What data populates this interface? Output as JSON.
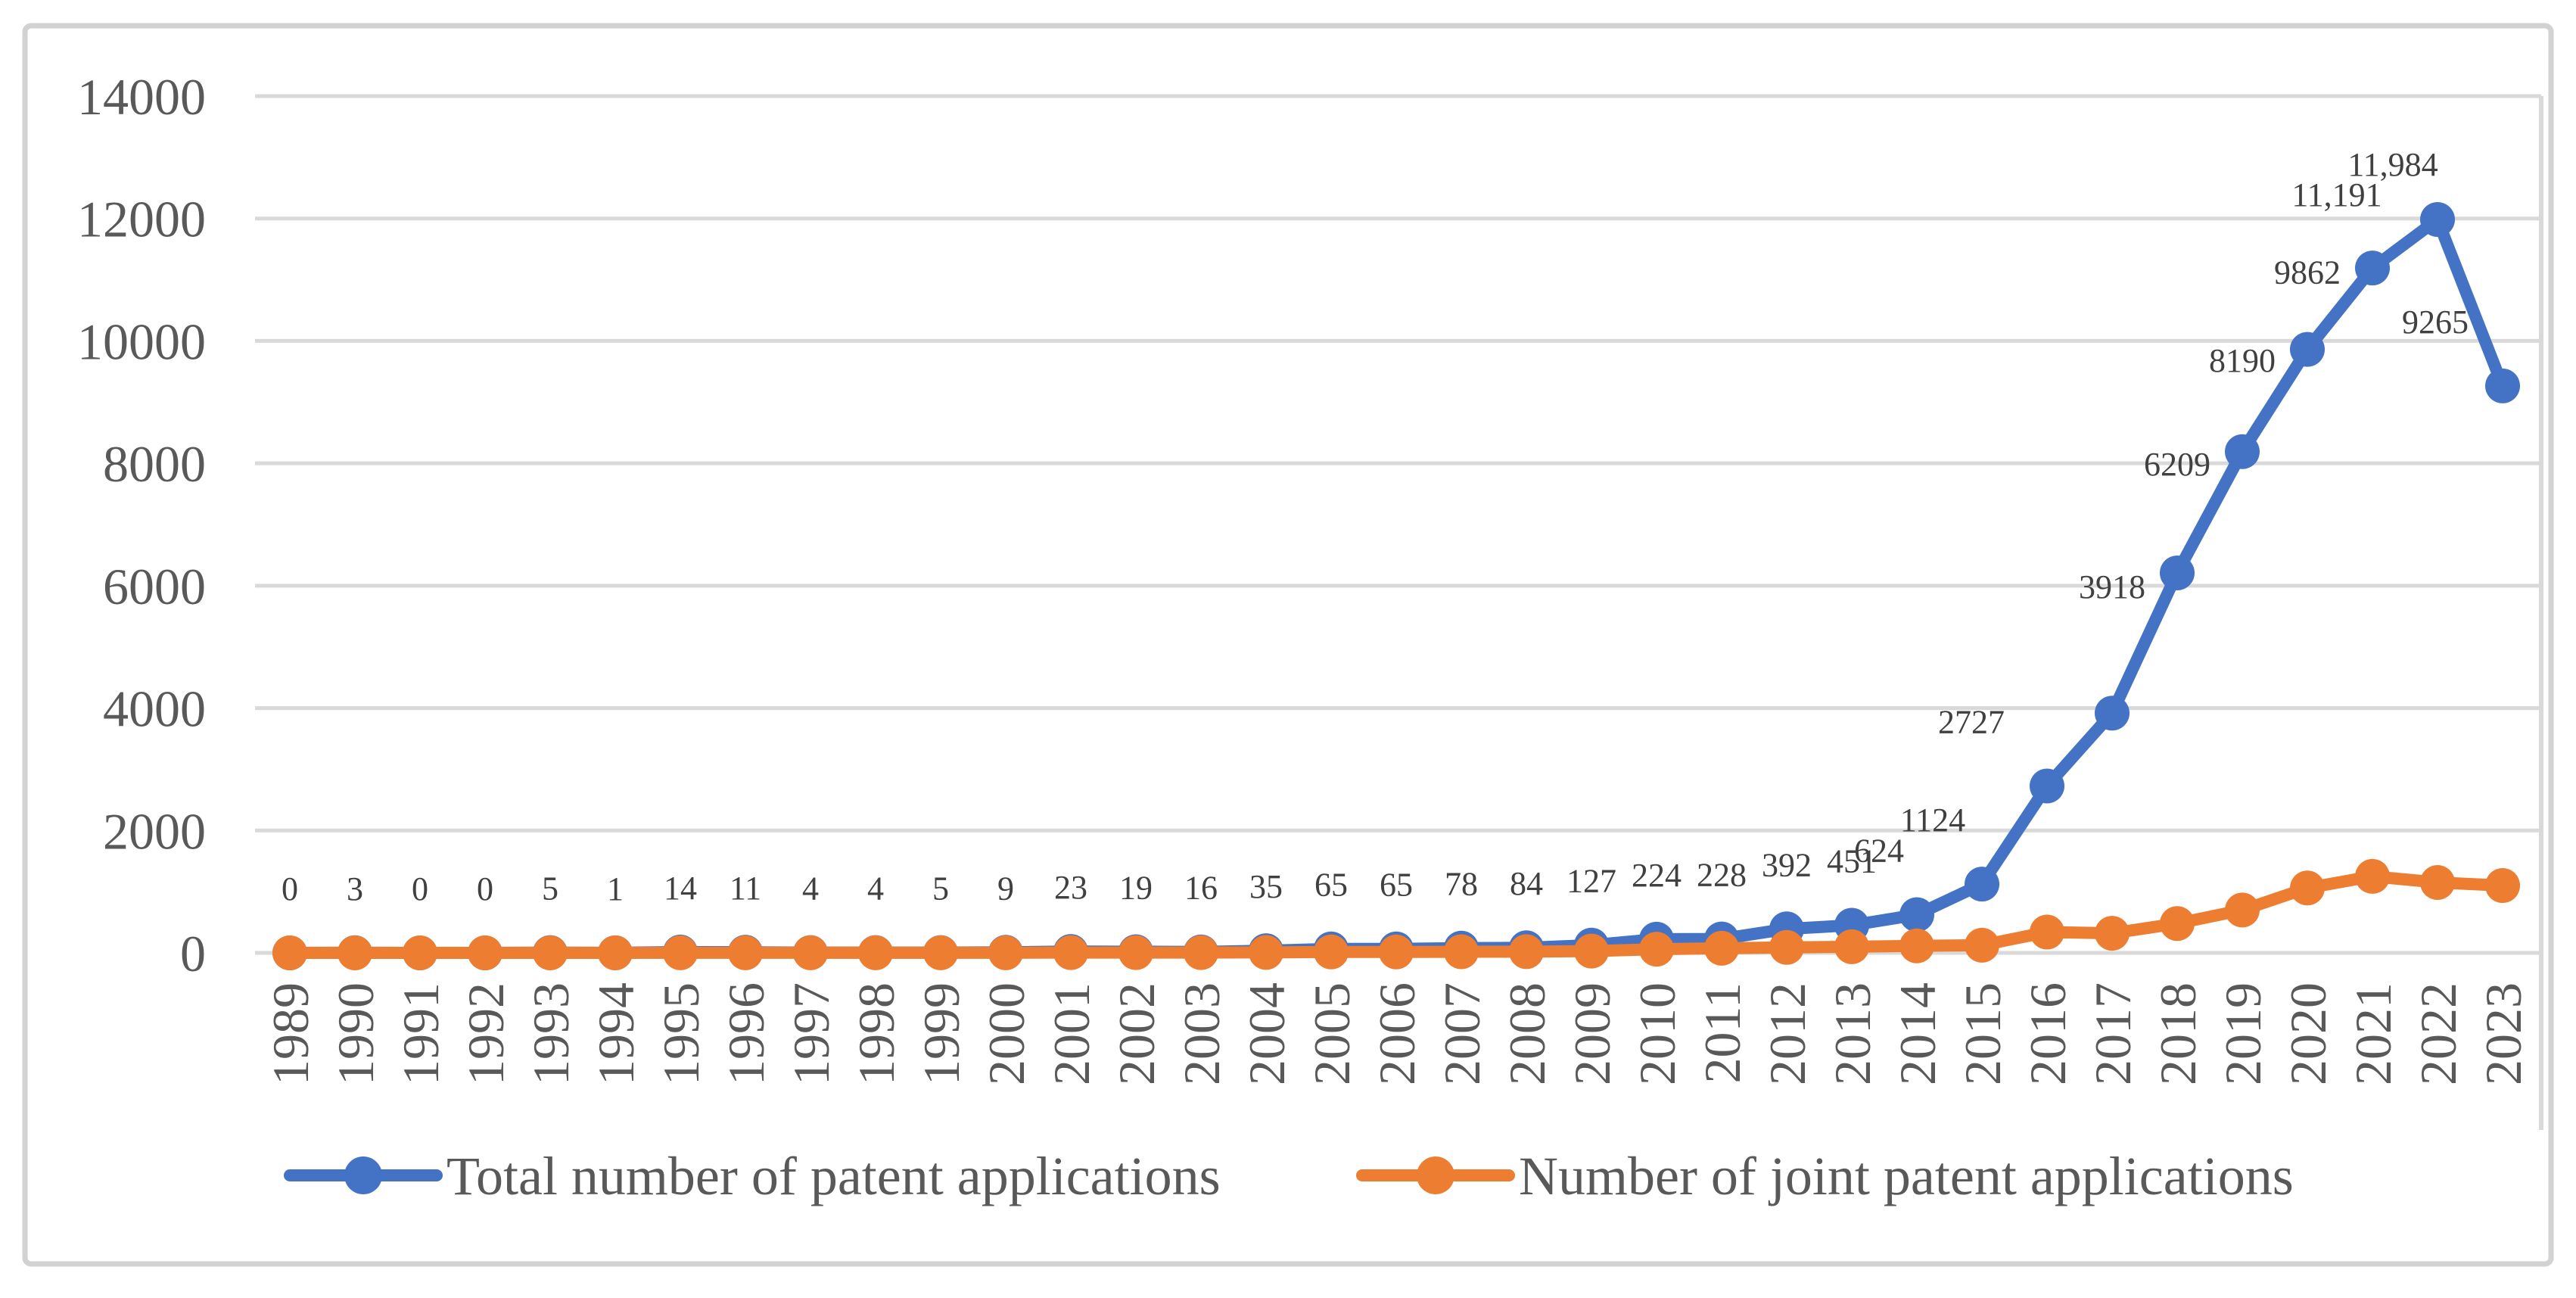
{
  "chart_data": {
    "type": "line",
    "title": "",
    "xlabel": "",
    "ylabel": "",
    "x": [
      "1989",
      "1990",
      "1991",
      "1992",
      "1993",
      "1994",
      "1995",
      "1996",
      "1997",
      "1998",
      "1999",
      "2000",
      "2001",
      "2002",
      "2003",
      "2004",
      "2005",
      "2006",
      "2007",
      "2008",
      "2009",
      "2010",
      "2011",
      "2012",
      "2013",
      "2014",
      "2015",
      "2016",
      "2017",
      "2018",
      "2019",
      "2020",
      "2021",
      "2022",
      "2023"
    ],
    "series": [
      {
        "name": "Total number of patent applications",
        "color": "#4472C4",
        "values": [
          0,
          3,
          0,
          0,
          5,
          1,
          14,
          11,
          4,
          4,
          5,
          9,
          23,
          19,
          16,
          35,
          65,
          65,
          78,
          84,
          127,
          224,
          228,
          392,
          451,
          624,
          1124,
          2727,
          3918,
          6209,
          8190,
          9862,
          11191,
          11984,
          9265
        ],
        "labels": [
          "0",
          "3",
          "0",
          "0",
          "5",
          "1",
          "14",
          "11",
          "4",
          "4",
          "5",
          "9",
          "23",
          "19",
          "16",
          "35",
          "65",
          "65",
          "78",
          "84",
          "127",
          "224",
          "228",
          "392",
          "451",
          "624",
          "1124",
          "2727",
          "3918",
          "6209",
          "8190",
          "9862",
          "11,191",
          "11,984",
          "9265"
        ],
        "label_offsets": {
          "25": {
            "dx": -50,
            "dy": 0
          },
          "26": {
            "dx": -65,
            "dy": 0
          },
          "27": {
            "dx": -100,
            "dy": 0
          },
          "28": {
            "dx": 0,
            "dy": -82
          },
          "29": {
            "dx": 0,
            "dy": -59
          },
          "30": {
            "dx": 0,
            "dy": -36
          },
          "31": {
            "dx": 0,
            "dy": -17
          },
          "32": {
            "dx": -47,
            "dy": -12
          },
          "33": {
            "dx": -59,
            "dy": 12
          },
          "34": {
            "dx": -89,
            "dy": 0
          }
        }
      },
      {
        "name": "Number of joint patent applications",
        "color": "#ED7D31",
        "values": [
          0,
          0,
          0,
          0,
          0,
          0,
          2,
          2,
          1,
          1,
          1,
          2,
          5,
          4,
          4,
          8,
          15,
          15,
          18,
          20,
          30,
          60,
          75,
          90,
          100,
          115,
          125,
          340,
          320,
          480,
          700,
          1060,
          1250,
          1150,
          1100
        ],
        "labels": null
      }
    ],
    "ylim": [
      0,
      14000
    ],
    "ytick_step": 2000,
    "yticks": [
      "0",
      "2000",
      "4000",
      "6000",
      "8000",
      "10000",
      "12000",
      "14000"
    ],
    "grid": "horizontal",
    "legend_position": "bottom",
    "colors": {
      "gridline": "#D9D9D9",
      "axis_text": "#595959",
      "data_label_text": "#404040",
      "frame_border": "#D2D2D2",
      "background": "#FFFFFF"
    }
  }
}
